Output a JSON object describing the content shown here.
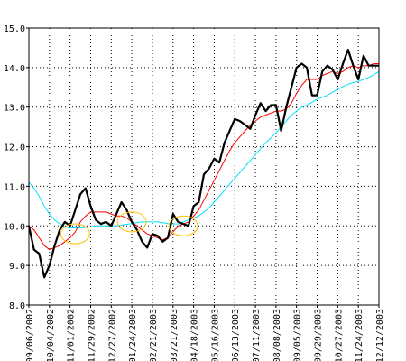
{
  "chart_data": {
    "type": "line",
    "title": "",
    "xlabel": "",
    "ylabel": "",
    "ylim": [
      8.0,
      15.0
    ],
    "yticks": [
      "8.0",
      "9.0",
      "10.0",
      "11.0",
      "12.0",
      "13.0",
      "14.0",
      "15.0"
    ],
    "xticks": [
      "09/06/2002",
      "10/04/2002",
      "11/01/2002",
      "11/29/2002",
      "12/27/2002",
      "01/24/2003",
      "02/21/2003",
      "03/21/2003",
      "04/18/2003",
      "05/16/2003",
      "06/13/2003",
      "07/11/2003",
      "08/08/2003",
      "09/05/2003",
      "09/29/2003",
      "10/27/2003",
      "11/24/2003",
      "12/12/2003"
    ],
    "grid": true,
    "colors": {
      "price": "#000000",
      "ma_short": "#ff0000",
      "ma_long": "#00e0ff",
      "highlight": "#ffc000",
      "grid": "#000000"
    },
    "series": [
      {
        "id": "price",
        "values": [
          10.0,
          9.4,
          9.3,
          8.7,
          9.0,
          9.5,
          9.9,
          10.1,
          10.0,
          10.4,
          10.8,
          10.95,
          10.5,
          10.15,
          10.05,
          10.1,
          10.0,
          10.3,
          10.6,
          10.4,
          10.1,
          9.9,
          9.6,
          9.45,
          9.8,
          9.75,
          9.6,
          9.7,
          10.3,
          10.1,
          10.05,
          10.0,
          10.5,
          10.6,
          11.3,
          11.45,
          11.7,
          11.6,
          12.1,
          12.4,
          12.7,
          12.65,
          12.55,
          12.45,
          12.8,
          13.1,
          12.9,
          13.05,
          13.05,
          12.4,
          13.0,
          13.5,
          14.0,
          14.1,
          14.0,
          13.3,
          13.3,
          13.9,
          14.05,
          13.95,
          13.7,
          14.1,
          14.45,
          14.05,
          13.7,
          14.3,
          14.05,
          14.05,
          14.05
        ]
      },
      {
        "id": "ma_short",
        "values": [
          10.0,
          9.9,
          9.7,
          9.5,
          9.4,
          9.45,
          9.5,
          9.6,
          9.7,
          9.85,
          10.1,
          10.25,
          10.35,
          10.35,
          10.35,
          10.35,
          10.3,
          10.25,
          10.25,
          10.2,
          10.1,
          10.0,
          9.9,
          9.8,
          9.75,
          9.7,
          9.65,
          9.7,
          9.85,
          10.0,
          10.05,
          10.1,
          10.25,
          10.4,
          10.65,
          10.9,
          11.15,
          11.4,
          11.65,
          11.9,
          12.1,
          12.25,
          12.4,
          12.55,
          12.65,
          12.75,
          12.8,
          12.85,
          12.9,
          12.9,
          12.95,
          13.1,
          13.35,
          13.55,
          13.7,
          13.7,
          13.7,
          13.8,
          13.85,
          13.9,
          13.85,
          13.9,
          14.0,
          14.05,
          14.0,
          14.05,
          14.05,
          14.1,
          14.1
        ]
      },
      {
        "id": "ma_long",
        "values": [
          11.1,
          10.95,
          10.75,
          10.5,
          10.3,
          10.15,
          10.05,
          9.98,
          9.95,
          9.95,
          9.95,
          9.96,
          9.98,
          10.0,
          10.0,
          10.0,
          10.0,
          10.0,
          10.02,
          10.04,
          10.06,
          10.08,
          10.1,
          10.1,
          10.1,
          10.1,
          10.08,
          10.06,
          10.05,
          10.05,
          10.1,
          10.15,
          10.2,
          10.25,
          10.35,
          10.45,
          10.6,
          10.75,
          10.9,
          11.05,
          11.2,
          11.35,
          11.5,
          11.65,
          11.8,
          11.95,
          12.1,
          12.22,
          12.35,
          12.5,
          12.65,
          12.8,
          12.9,
          13.0,
          13.05,
          13.12,
          13.2,
          13.25,
          13.3,
          13.38,
          13.45,
          13.52,
          13.58,
          13.62,
          13.65,
          13.7,
          13.75,
          13.82,
          13.9
        ]
      }
    ],
    "annotations": [
      {
        "type": "ellipse",
        "x_index": 9,
        "y": 9.8
      },
      {
        "type": "ellipse",
        "x_index": 20,
        "y": 10.1
      },
      {
        "type": "ellipse",
        "x_index": 30,
        "y": 10.0
      }
    ]
  }
}
